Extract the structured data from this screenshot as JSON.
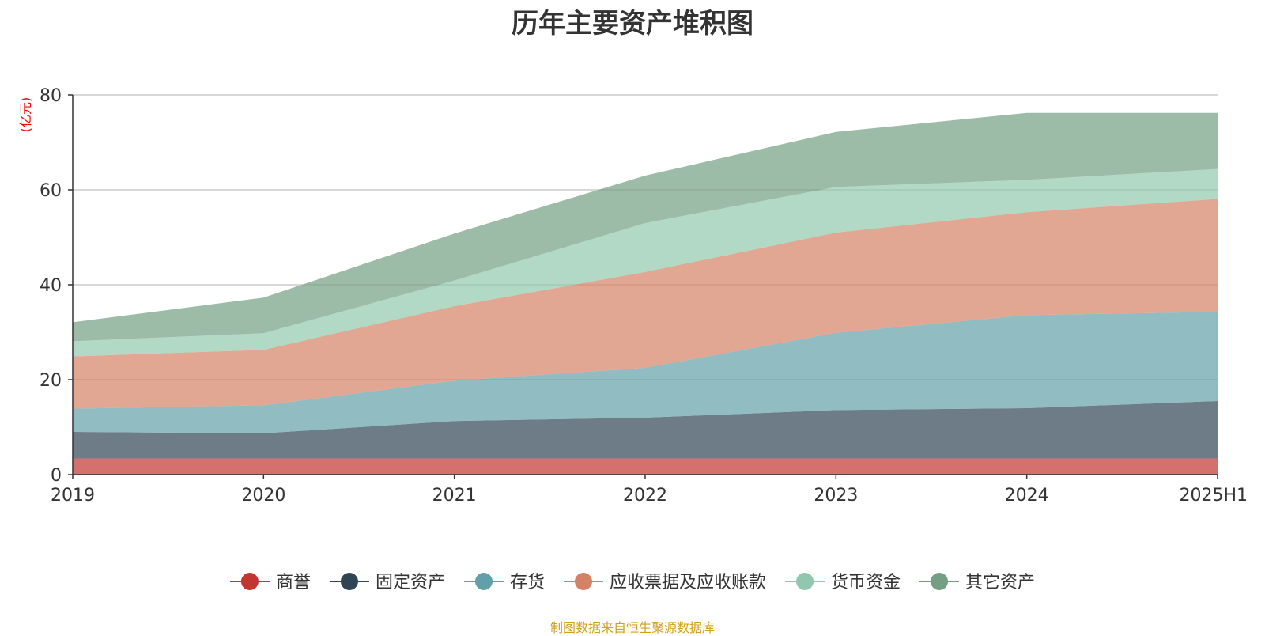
{
  "chart_data": {
    "type": "area",
    "title": "历年主要资产堆积图",
    "ylabel": "(亿元)",
    "xlabel": "",
    "categories": [
      "2019",
      "2020",
      "2021",
      "2022",
      "2023",
      "2024",
      "2025H1"
    ],
    "ylim": [
      0,
      80
    ],
    "yticks": [
      0,
      20,
      40,
      60,
      80
    ],
    "stacked": true,
    "grid": true,
    "legend_position": "bottom",
    "series": [
      {
        "name": "商誉",
        "color": "#c23531",
        "values": [
          3.4,
          3.4,
          3.4,
          3.4,
          3.4,
          3.4,
          3.4
        ]
      },
      {
        "name": "固定资产",
        "color": "#2f4554",
        "values": [
          5.6,
          5.3,
          7.9,
          8.6,
          10.2,
          10.6,
          12.1
        ]
      },
      {
        "name": "存货",
        "color": "#61a0a8",
        "values": [
          4.9,
          5.9,
          8.5,
          10.5,
          16.3,
          19.6,
          18.8
        ]
      },
      {
        "name": "应收票据及应收账款",
        "color": "#d48265",
        "values": [
          11.0,
          11.7,
          15.7,
          20.2,
          21.1,
          21.7,
          23.8
        ]
      },
      {
        "name": "货币资金",
        "color": "#91c7ae",
        "values": [
          3.2,
          3.5,
          5.4,
          10.3,
          9.6,
          6.8,
          6.3
        ]
      },
      {
        "name": "其它资产",
        "color": "#749f83",
        "values": [
          4.0,
          7.5,
          9.9,
          10.0,
          11.6,
          14.1,
          11.8
        ]
      }
    ]
  },
  "footer": {
    "source": "制图数据来自恒生聚源数据库"
  }
}
